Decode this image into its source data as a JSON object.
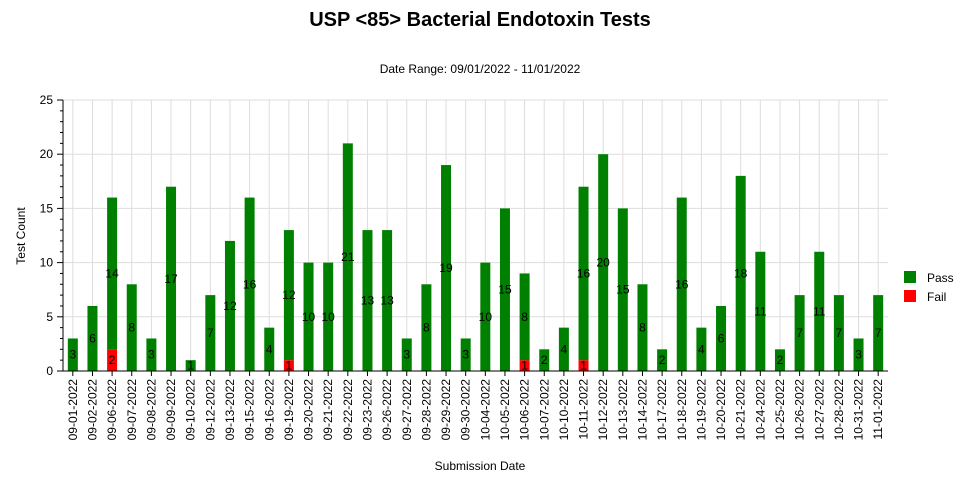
{
  "chart_data": {
    "type": "bar",
    "stacked": true,
    "title": "USP <85> Bacterial Endotoxin Tests",
    "subtitle": "Date Range: 09/01/2022 - 11/01/2022",
    "xlabel": "Submission Date",
    "ylabel": "Test Count",
    "ylim": [
      0,
      25
    ],
    "yticks": [
      0,
      5,
      10,
      15,
      20,
      25
    ],
    "grid": true,
    "legend_position": "right",
    "categories": [
      "09-01-2022",
      "09-02-2022",
      "09-06-2022",
      "09-07-2022",
      "09-08-2022",
      "09-09-2022",
      "09-10-2022",
      "09-12-2022",
      "09-13-2022",
      "09-15-2022",
      "09-16-2022",
      "09-19-2022",
      "09-20-2022",
      "09-21-2022",
      "09-22-2022",
      "09-23-2022",
      "09-26-2022",
      "09-27-2022",
      "09-28-2022",
      "09-29-2022",
      "09-30-2022",
      "10-04-2022",
      "10-05-2022",
      "10-06-2022",
      "10-07-2022",
      "10-10-2022",
      "10-11-2022",
      "10-12-2022",
      "10-13-2022",
      "10-14-2022",
      "10-17-2022",
      "10-18-2022",
      "10-19-2022",
      "10-20-2022",
      "10-21-2022",
      "10-24-2022",
      "10-25-2022",
      "10-26-2022",
      "10-27-2022",
      "10-28-2022",
      "10-31-2022",
      "11-01-2022"
    ],
    "series": [
      {
        "name": "Pass",
        "color": "#008000",
        "values": [
          3,
          6,
          14,
          8,
          3,
          17,
          1,
          7,
          12,
          16,
          4,
          12,
          10,
          10,
          21,
          13,
          13,
          3,
          8,
          19,
          3,
          10,
          15,
          8,
          2,
          4,
          16,
          20,
          15,
          8,
          2,
          16,
          4,
          6,
          18,
          11,
          2,
          7,
          11,
          7,
          3,
          7
        ]
      },
      {
        "name": "Fail",
        "color": "#ff0000",
        "values": [
          0,
          0,
          2,
          0,
          0,
          0,
          0,
          0,
          0,
          0,
          0,
          1,
          0,
          0,
          0,
          0,
          0,
          0,
          0,
          0,
          0,
          0,
          0,
          1,
          0,
          0,
          1,
          0,
          0,
          0,
          0,
          0,
          0,
          0,
          0,
          0,
          0,
          0,
          0,
          0,
          0,
          0
        ]
      }
    ]
  }
}
